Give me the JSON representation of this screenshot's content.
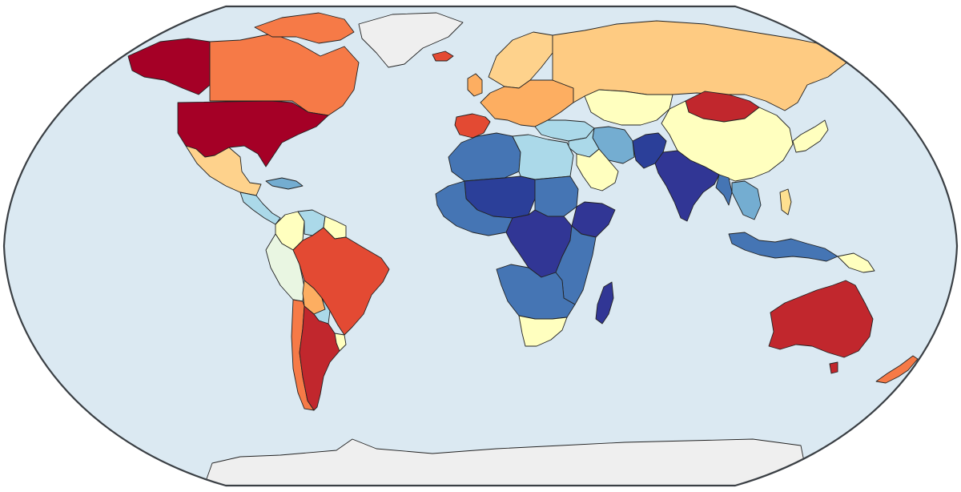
{
  "map": {
    "projection": "robinson",
    "ocean_color": "#dbe9f2",
    "no_data_color": "#efefef",
    "border_color": "#222222",
    "frame_color": "#3a3f44",
    "color_scale": [
      "#313695",
      "#4575b4",
      "#74add1",
      "#abd9e9",
      "#e0f3f8",
      "#ffffbf",
      "#fee090",
      "#fdae61",
      "#f46d43",
      "#d73027",
      "#a50026"
    ],
    "regions": [
      {
        "name": "greenland-no-data",
        "color": "#efefef"
      },
      {
        "name": "antarctica-no-data",
        "color": "#efefef"
      },
      {
        "name": "usa",
        "color": "#a50026"
      },
      {
        "name": "alaska",
        "color": "#a50026"
      },
      {
        "name": "canada",
        "color": "#f67a47"
      },
      {
        "name": "canadian-arctic-islands",
        "color": "#f67a47"
      },
      {
        "name": "mexico",
        "color": "#fed28c"
      },
      {
        "name": "central-america",
        "color": "#abd9e9"
      },
      {
        "name": "caribbean",
        "color": "#74add1"
      },
      {
        "name": "colombia",
        "color": "#ffffbf"
      },
      {
        "name": "venezuela",
        "color": "#abd9e9"
      },
      {
        "name": "guianas",
        "color": "#ffffbf"
      },
      {
        "name": "ecuador-peru",
        "color": "#e9f6e2"
      },
      {
        "name": "brazil",
        "color": "#e34a33"
      },
      {
        "name": "bolivia",
        "color": "#fdae61"
      },
      {
        "name": "paraguay",
        "color": "#abd9e9"
      },
      {
        "name": "chile",
        "color": "#f67a47"
      },
      {
        "name": "argentina",
        "color": "#c1272d"
      },
      {
        "name": "uruguay",
        "color": "#ffffbf"
      },
      {
        "name": "iceland",
        "color": "#e34a33"
      },
      {
        "name": "norway-sweden-finland",
        "color": "#fed28c"
      },
      {
        "name": "uk",
        "color": "#fdae61"
      },
      {
        "name": "western-europe",
        "color": "#fdae61"
      },
      {
        "name": "iberia",
        "color": "#e34a33"
      },
      {
        "name": "russia",
        "color": "#fecb82"
      },
      {
        "name": "kazakhstan",
        "color": "#ffffbf"
      },
      {
        "name": "mongolia",
        "color": "#c1272d"
      },
      {
        "name": "china",
        "color": "#ffffbf"
      },
      {
        "name": "turkey-caucasus",
        "color": "#abd9e9"
      },
      {
        "name": "middle-east",
        "color": "#abd9e9"
      },
      {
        "name": "arabian-peninsula",
        "color": "#ffffbf"
      },
      {
        "name": "iran",
        "color": "#74add1"
      },
      {
        "name": "afghanistan-pakistan",
        "color": "#2b3f99"
      },
      {
        "name": "india",
        "color": "#313695"
      },
      {
        "name": "southeast-asia",
        "color": "#74add1"
      },
      {
        "name": "myanmar",
        "color": "#4575b4"
      },
      {
        "name": "japan-korea",
        "color": "#ffffbf"
      },
      {
        "name": "indonesia",
        "color": "#4575b4"
      },
      {
        "name": "philippines",
        "color": "#fee090"
      },
      {
        "name": "papua-new-guinea",
        "color": "#ffffbf"
      },
      {
        "name": "north-africa-west",
        "color": "#4575b4"
      },
      {
        "name": "libya-egypt",
        "color": "#abd9e9"
      },
      {
        "name": "sudan",
        "color": "#4575b4"
      },
      {
        "name": "sahel",
        "color": "#2b3f99"
      },
      {
        "name": "west-africa",
        "color": "#4575b4"
      },
      {
        "name": "horn-of-africa",
        "color": "#313695"
      },
      {
        "name": "central-africa",
        "color": "#313695"
      },
      {
        "name": "east-africa",
        "color": "#4575b4"
      },
      {
        "name": "southern-africa",
        "color": "#4575b4"
      },
      {
        "name": "south-africa",
        "color": "#ffffbf"
      },
      {
        "name": "madagascar",
        "color": "#313695"
      },
      {
        "name": "australia",
        "color": "#c1272d"
      },
      {
        "name": "tasmania",
        "color": "#c1272d"
      },
      {
        "name": "new-zealand",
        "color": "#f67a47"
      }
    ]
  }
}
